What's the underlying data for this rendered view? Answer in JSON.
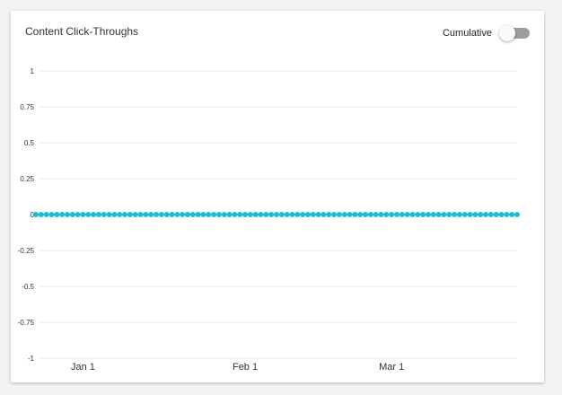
{
  "card": {
    "title": "Content Click-Throughs",
    "toggle_label": "Cumulative",
    "toggle_on": false
  },
  "chart_data": {
    "type": "line",
    "title": "Content Click-Throughs",
    "xlabel": "",
    "ylabel": "",
    "ylim": [
      -1,
      1
    ],
    "y_ticks": [
      1,
      0.75,
      0.5,
      0.25,
      0,
      -0.25,
      -0.5,
      -0.75,
      -1
    ],
    "y_tick_labels": [
      "1",
      "0.75",
      "0.5",
      "0.25",
      "0",
      "-0.25",
      "-0.5",
      "-0.75",
      "-1"
    ],
    "x_range": [
      "2022-12-23",
      "2023-03-25"
    ],
    "x_ticks": [
      {
        "date": "2023-01-01",
        "label": "Jan 1"
      },
      {
        "date": "2023-02-01",
        "label": "Feb 1"
      },
      {
        "date": "2023-03-01",
        "label": "Mar 1"
      }
    ],
    "grid": true,
    "series": [
      {
        "color": "#1fbccd",
        "start": "2022-12-23",
        "end": "2023-03-25",
        "value": 0
      }
    ]
  }
}
